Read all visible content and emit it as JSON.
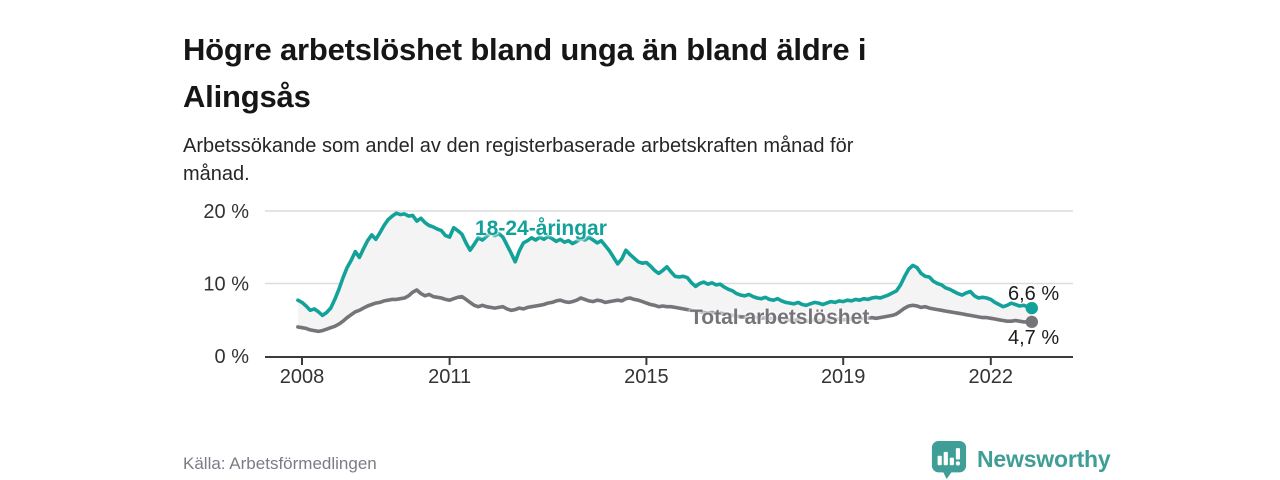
{
  "header": {
    "title": [
      "Högre arbetslöshet bland unga än bland äldre i",
      "Alingsås"
    ],
    "subtitle": [
      "Arbetssökande som andel av den registerbaserade arbetskraften månad för",
      "månad."
    ]
  },
  "chart_data": {
    "type": "line",
    "title": "Högre arbetslöshet bland unga än bland äldre i Alingsås",
    "subtitle": "Arbetssökande som andel av den registerbaserade arbetskraften månad för månad.",
    "unit": "%",
    "x_start": 2007.9167,
    "x_step": "monthly",
    "x_ticks": [
      2008,
      2011,
      2015,
      2019,
      2022
    ],
    "y_ticks": [
      {
        "value": 0,
        "label": "0 %"
      },
      {
        "value": 10,
        "label": "10 %"
      },
      {
        "value": 20,
        "label": "20 %"
      }
    ],
    "ylim": [
      0,
      21.5
    ],
    "grid": true,
    "legend_position": "inline-labels",
    "band_fill_between_series": true,
    "series": [
      {
        "id": "young",
        "name": "18-24-åringar",
        "color": "#12a29a",
        "end_label": "6,6 %",
        "end_value": 6.6,
        "values": [
          7.7,
          7.4,
          6.9,
          6.3,
          6.5,
          6.1,
          5.6,
          6.0,
          6.6,
          7.8,
          9.2,
          10.8,
          12.2,
          13.2,
          14.4,
          13.6,
          14.8,
          15.9,
          16.7,
          16.1,
          17.0,
          18.0,
          18.8,
          19.3,
          19.7,
          19.5,
          19.6,
          19.3,
          19.4,
          18.6,
          19.0,
          18.4,
          18.0,
          17.8,
          17.5,
          17.3,
          16.6,
          16.4,
          17.7,
          17.3,
          16.8,
          15.6,
          14.6,
          15.4,
          16.3,
          16.0,
          16.5,
          17.0,
          16.6,
          16.9,
          16.4,
          15.3,
          14.2,
          13.0,
          14.5,
          15.6,
          15.9,
          16.3,
          16.0,
          16.4,
          16.1,
          16.5,
          16.2,
          15.8,
          16.1,
          15.7,
          15.9,
          15.5,
          15.8,
          16.2,
          16.0,
          16.4,
          16.0,
          15.6,
          15.9,
          15.2,
          14.5,
          13.6,
          12.7,
          13.4,
          14.6,
          14.0,
          13.5,
          13.0,
          12.8,
          12.9,
          12.4,
          11.8,
          11.4,
          11.8,
          12.3,
          11.6,
          11.0,
          10.9,
          11.0,
          10.8,
          10.1,
          9.6,
          10.0,
          10.2,
          9.9,
          10.1,
          9.8,
          9.9,
          9.5,
          9.2,
          9.0,
          8.6,
          8.4,
          8.3,
          8.5,
          8.2,
          8.0,
          7.9,
          8.1,
          7.8,
          7.7,
          7.9,
          7.6,
          7.4,
          7.3,
          7.2,
          7.4,
          7.1,
          7.0,
          7.2,
          7.4,
          7.3,
          7.1,
          7.3,
          7.5,
          7.4,
          7.6,
          7.5,
          7.7,
          7.6,
          7.8,
          7.7,
          7.9,
          7.8,
          8.0,
          8.1,
          8.0,
          8.2,
          8.4,
          8.7,
          9.0,
          9.8,
          11.0,
          12.0,
          12.5,
          12.2,
          11.4,
          11.0,
          10.9,
          10.3,
          10.0,
          9.8,
          9.4,
          9.2,
          8.9,
          8.6,
          8.4,
          8.7,
          8.9,
          8.3,
          8.0,
          8.1,
          8.0,
          7.8,
          7.4,
          7.1,
          6.8,
          7.0,
          7.3,
          7.1,
          6.9,
          7.0,
          6.8,
          6.6
        ]
      },
      {
        "id": "total",
        "name": "Total arbetslöshet",
        "color": "#767479",
        "end_label": "4,7 %",
        "end_value": 4.7,
        "values": [
          4.0,
          3.9,
          3.8,
          3.6,
          3.5,
          3.4,
          3.5,
          3.7,
          3.9,
          4.1,
          4.4,
          4.8,
          5.3,
          5.7,
          6.1,
          6.3,
          6.6,
          6.9,
          7.1,
          7.3,
          7.4,
          7.6,
          7.7,
          7.8,
          7.8,
          7.9,
          8.0,
          8.3,
          8.8,
          9.1,
          8.6,
          8.3,
          8.5,
          8.2,
          8.1,
          8.0,
          7.8,
          7.7,
          7.9,
          8.1,
          8.2,
          7.8,
          7.4,
          7.0,
          6.8,
          7.0,
          6.8,
          6.7,
          6.6,
          6.7,
          6.8,
          6.5,
          6.3,
          6.4,
          6.6,
          6.5,
          6.7,
          6.8,
          6.9,
          7.0,
          7.1,
          7.3,
          7.4,
          7.6,
          7.7,
          7.5,
          7.4,
          7.5,
          7.7,
          8.0,
          7.8,
          7.6,
          7.5,
          7.7,
          7.6,
          7.4,
          7.5,
          7.6,
          7.7,
          7.6,
          7.9,
          8.0,
          7.8,
          7.7,
          7.5,
          7.3,
          7.1,
          7.0,
          6.8,
          6.9,
          6.8,
          6.8,
          6.7,
          6.6,
          6.5,
          6.4,
          6.3,
          6.2,
          6.1,
          6.0,
          5.9,
          6.0,
          5.9,
          5.9,
          5.8,
          5.7,
          5.6,
          5.5,
          5.4,
          5.4,
          5.5,
          5.4,
          5.3,
          5.2,
          5.3,
          5.2,
          5.1,
          5.2,
          5.1,
          5.0,
          5.0,
          4.9,
          5.0,
          4.9,
          4.8,
          4.9,
          5.0,
          4.9,
          4.8,
          4.9,
          5.0,
          5.0,
          5.1,
          5.0,
          5.1,
          5.1,
          5.2,
          5.1,
          5.2,
          5.2,
          5.3,
          5.2,
          5.3,
          5.4,
          5.5,
          5.6,
          5.8,
          6.2,
          6.6,
          6.9,
          7.0,
          6.9,
          6.7,
          6.8,
          6.6,
          6.5,
          6.4,
          6.3,
          6.2,
          6.1,
          6.0,
          5.9,
          5.8,
          5.7,
          5.6,
          5.5,
          5.4,
          5.3,
          5.3,
          5.2,
          5.1,
          5.0,
          4.9,
          4.8,
          4.8,
          4.9,
          4.8,
          4.7,
          4.7,
          4.7
        ]
      }
    ]
  },
  "footer": {
    "source": "Källa: Arbetsförmedlingen",
    "brand": "Newsworthy"
  },
  "colors": {
    "accent_teal": "#12a29a",
    "line_gray": "#767479",
    "band_fill": "#f4f4f4",
    "grid": "#dcdcdc",
    "axis": "#3b3b3b",
    "logo_teal": "#3f9e96",
    "text_dark": "#161616"
  }
}
